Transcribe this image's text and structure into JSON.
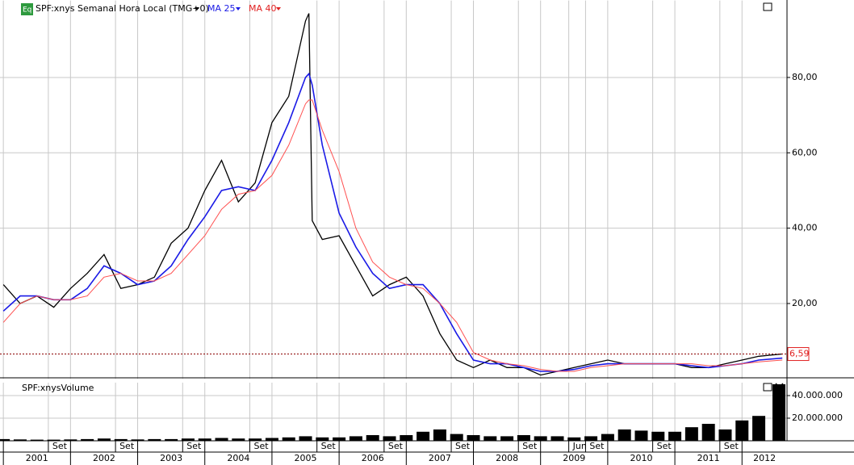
{
  "chart_data": [
    {
      "type": "line",
      "title": "SPF:xnys Semanal Hora Local (TMG+0)",
      "badge": "Eq",
      "x": [
        2001.0,
        2001.25,
        2001.5,
        2001.75,
        2002.0,
        2002.25,
        2002.5,
        2002.75,
        2003.0,
        2003.25,
        2003.5,
        2003.75,
        2004.0,
        2004.25,
        2004.5,
        2004.75,
        2005.0,
        2005.25,
        2005.5,
        2005.55,
        2005.6,
        2005.75,
        2006.0,
        2006.25,
        2006.5,
        2006.75,
        2007.0,
        2007.25,
        2007.5,
        2007.75,
        2008.0,
        2008.25,
        2008.5,
        2008.75,
        2009.0,
        2009.25,
        2009.5,
        2009.75,
        2010.0,
        2010.25,
        2010.5,
        2010.75,
        2011.0,
        2011.25,
        2011.5,
        2011.75,
        2012.0,
        2012.25,
        2012.6
      ],
      "series": [
        {
          "color": "#000000",
          "values": [
            25,
            20,
            22,
            19,
            24,
            28,
            33,
            24,
            25,
            27,
            36,
            40,
            50,
            58,
            47,
            52,
            68,
            75,
            95,
            97,
            42,
            37,
            38,
            30,
            22,
            25,
            27,
            22,
            12,
            5,
            3,
            5,
            3,
            3,
            1,
            2,
            3,
            4,
            5,
            4,
            4,
            4,
            4,
            3,
            3,
            4,
            5,
            6,
            6.59
          ]
        },
        {
          "name": "MA 25",
          "color": "#1a1ae6",
          "values": [
            18,
            22,
            22,
            21,
            21,
            24,
            30,
            28,
            25,
            26,
            30,
            37,
            43,
            50,
            51,
            50,
            58,
            68,
            80,
            81,
            78,
            62,
            44,
            35,
            28,
            24,
            25,
            25,
            20,
            12,
            5,
            4,
            4,
            3,
            2,
            2,
            2.5,
            3.5,
            4,
            4,
            4,
            4,
            4,
            3.5,
            3,
            3.5,
            4,
            5,
            5.5
          ]
        },
        {
          "name": "MA 40",
          "color": "#ff5050",
          "values": [
            15,
            20,
            22,
            21,
            21,
            22,
            27,
            28,
            26,
            26,
            28,
            33,
            38,
            45,
            49,
            50,
            54,
            62,
            73,
            74,
            74,
            66,
            55,
            40,
            31,
            27,
            25,
            24,
            20,
            15,
            7,
            5,
            4,
            3.5,
            2.5,
            2,
            2,
            3,
            3.5,
            4,
            4,
            4,
            4,
            4,
            3.5,
            3.5,
            4,
            4.5,
            5
          ]
        }
      ],
      "last_value": 6.59,
      "last_value_label": "6,59",
      "xlim": [
        2000.95,
        2012.67
      ],
      "ylim": [
        0,
        100
      ],
      "yticks": [
        {
          "value": 20,
          "label": "20,00"
        },
        {
          "value": 40,
          "label": "40,00"
        },
        {
          "value": 60,
          "label": "60,00"
        },
        {
          "value": 80,
          "label": "80,00"
        }
      ],
      "xticks": [
        {
          "value": 2001,
          "label": "2001"
        },
        {
          "value": 2002,
          "label": "2002"
        },
        {
          "value": 2003,
          "label": "2003"
        },
        {
          "value": 2004,
          "label": "2004"
        },
        {
          "value": 2005,
          "label": "2005"
        },
        {
          "value": 2006,
          "label": "2006"
        },
        {
          "value": 2007,
          "label": "2007"
        },
        {
          "value": 2008,
          "label": "2008"
        },
        {
          "value": 2009,
          "label": "2009"
        },
        {
          "value": 2010,
          "label": "2010"
        },
        {
          "value": 2011,
          "label": "2011"
        },
        {
          "value": 2012,
          "label": "2012"
        }
      ],
      "month_ticks": [
        {
          "value": 2001.67,
          "label": "Set"
        },
        {
          "value": 2002.67,
          "label": "Set"
        },
        {
          "value": 2003.67,
          "label": "Set"
        },
        {
          "value": 2004.67,
          "label": "Set"
        },
        {
          "value": 2005.67,
          "label": "Set"
        },
        {
          "value": 2006.67,
          "label": "Set"
        },
        {
          "value": 2007.67,
          "label": "Set"
        },
        {
          "value": 2008.67,
          "label": "Set"
        },
        {
          "value": 2009.42,
          "label": "Jun"
        },
        {
          "value": 2009.67,
          "label": "Set"
        },
        {
          "value": 2010.67,
          "label": "Set"
        },
        {
          "value": 2011.67,
          "label": "Set"
        }
      ],
      "grid": true
    },
    {
      "type": "bar",
      "title": "SPF:xnysVolume",
      "color": "#000000",
      "x": [
        2001.0,
        2001.25,
        2001.5,
        2001.75,
        2002.0,
        2002.25,
        2002.5,
        2002.75,
        2003.0,
        2003.25,
        2003.5,
        2003.75,
        2004.0,
        2004.25,
        2004.5,
        2004.75,
        2005.0,
        2005.25,
        2005.5,
        2005.75,
        2006.0,
        2006.25,
        2006.5,
        2006.75,
        2007.0,
        2007.25,
        2007.5,
        2007.75,
        2008.0,
        2008.25,
        2008.5,
        2008.75,
        2009.0,
        2009.25,
        2009.5,
        2009.75,
        2010.0,
        2010.25,
        2010.5,
        2010.75,
        2011.0,
        2011.25,
        2011.5,
        2011.75,
        2012.0,
        2012.25,
        2012.55
      ],
      "values": [
        1500000,
        1200000,
        1000000,
        1000000,
        1200000,
        1500000,
        2000000,
        1500000,
        1200000,
        1500000,
        1500000,
        2000000,
        2000000,
        2500000,
        2000000,
        2000000,
        2500000,
        3000000,
        4000000,
        3000000,
        3000000,
        4000000,
        5000000,
        4000000,
        5000000,
        8000000,
        10000000,
        6000000,
        5000000,
        4000000,
        4000000,
        5000000,
        4000000,
        4000000,
        3000000,
        4000000,
        6000000,
        10000000,
        9000000,
        8000000,
        8000000,
        12000000,
        15000000,
        10000000,
        18000000,
        22000000,
        50000000
      ],
      "xlim": [
        2000.95,
        2012.67
      ],
      "ylim": [
        0,
        50000000
      ],
      "yticks": [
        {
          "value": 20000000,
          "label": "20.000.000"
        },
        {
          "value": 40000000,
          "label": "40.000.000"
        }
      ],
      "grid": true
    }
  ]
}
